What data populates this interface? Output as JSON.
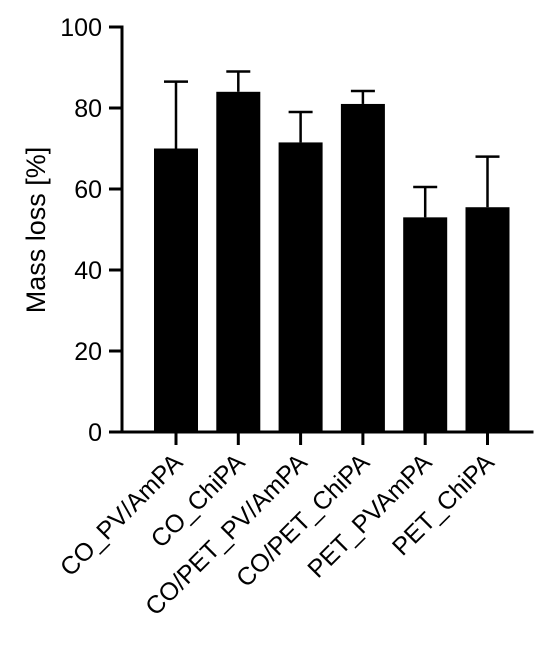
{
  "chart_data": {
    "type": "bar",
    "title": "",
    "xlabel": "",
    "ylabel": "Mass loss [%]",
    "ylim": [
      0,
      100
    ],
    "yticks": [
      "0",
      "20",
      "40",
      "60",
      "80",
      "100"
    ],
    "categories": [
      "CO_PV/AmPA",
      "CO_ChiPA",
      "CO/PET_PV/AmPA",
      "CO/PET_ChiPA",
      "PET_PVAmPA",
      "PET_ChiPA"
    ],
    "values": [
      70,
      84,
      71.5,
      81,
      53,
      55.5
    ],
    "error_plus": [
      16.5,
      5,
      7.5,
      3.2,
      7.5,
      12.5
    ],
    "bar_color": "#000000",
    "grid": false,
    "legend": "none"
  }
}
